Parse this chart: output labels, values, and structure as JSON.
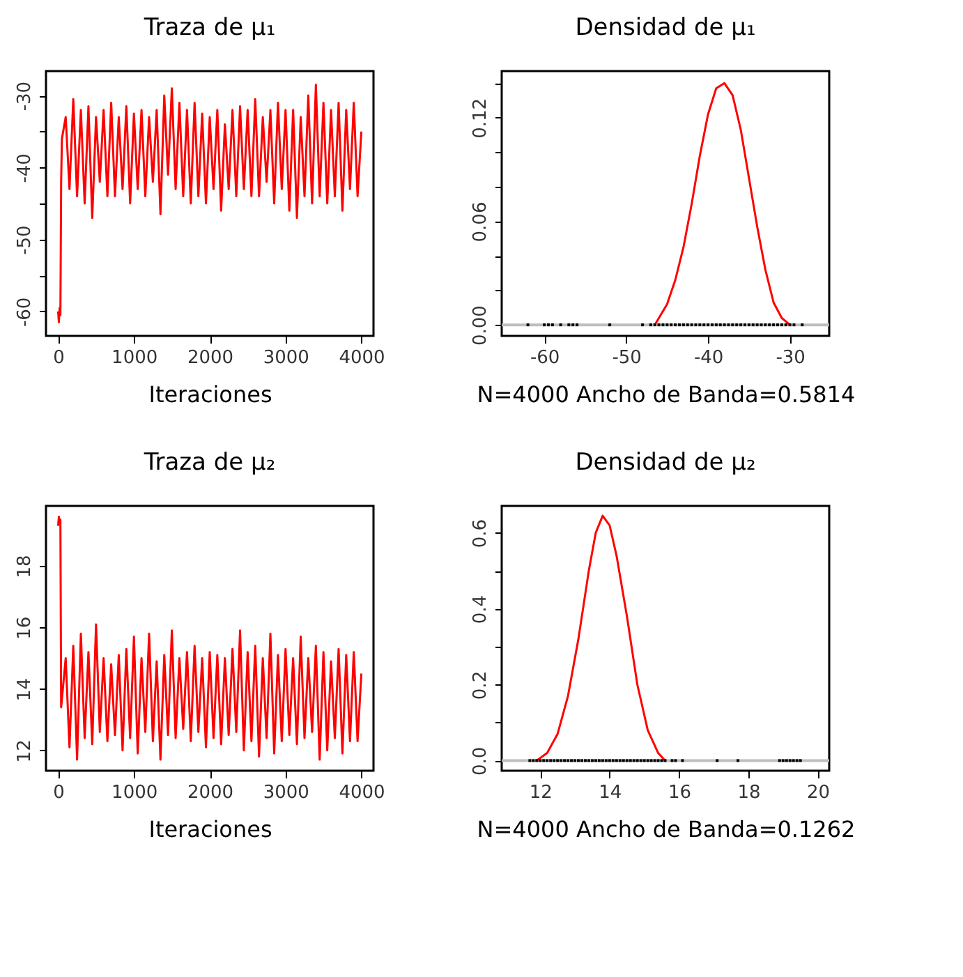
{
  "chart_data": [
    {
      "type": "line",
      "title": "Traza de μ₁",
      "xlabel": "Iteraciones",
      "xlim": [
        -160,
        4160
      ],
      "xticks": [
        0,
        1000,
        2000,
        3000,
        4000
      ],
      "ylim": [
        -63.4,
        -26.6
      ],
      "yticks": [
        -30,
        {
          "value": -35,
          "label": null
        },
        -40,
        {
          "value": -45,
          "label": null
        },
        -50,
        {
          "value": -55,
          "label": null
        },
        -60
      ],
      "grid": false,
      "series": [
        {
          "color": "#ff0000",
          "x": [
            0,
            10,
            20,
            30,
            40,
            50,
            100,
            150,
            200,
            250,
            300,
            350,
            400,
            450,
            500,
            550,
            600,
            650,
            700,
            750,
            800,
            850,
            900,
            950,
            1000,
            1050,
            1100,
            1150,
            1200,
            1250,
            1300,
            1350,
            1400,
            1450,
            1500,
            1550,
            1600,
            1650,
            1700,
            1750,
            1800,
            1850,
            1900,
            1950,
            2000,
            2050,
            2100,
            2150,
            2200,
            2250,
            2300,
            2350,
            2400,
            2450,
            2500,
            2550,
            2600,
            2650,
            2700,
            2750,
            2800,
            2850,
            2900,
            2950,
            3000,
            3050,
            3100,
            3150,
            3200,
            3250,
            3300,
            3350,
            3400,
            3450,
            3500,
            3550,
            3600,
            3650,
            3700,
            3750,
            3800,
            3850,
            3900,
            3950,
            4000
          ],
          "values": [
            -60,
            -61.5,
            -59.5,
            -60.5,
            -42,
            -36,
            -33,
            -43,
            -30.5,
            -44,
            -32,
            -45,
            -31.5,
            -47,
            -33,
            -42,
            -32,
            -44,
            -31,
            -44,
            -33,
            -43,
            -31.5,
            -45,
            -32.5,
            -43,
            -32,
            -44,
            -33,
            -42,
            -32,
            -46.5,
            -30,
            -41,
            -29,
            -43,
            -31,
            -44,
            -32,
            -45,
            -31,
            -44,
            -32.5,
            -45,
            -33,
            -43,
            -32,
            -46,
            -34,
            -43,
            -32,
            -44,
            -31.5,
            -43,
            -32,
            -44,
            -30.5,
            -44,
            -33,
            -42,
            -32,
            -45,
            -31,
            -43,
            -32,
            -46,
            -32,
            -47,
            -33,
            -44,
            -30,
            -45,
            -28.5,
            -44,
            -31,
            -45,
            -32,
            -44,
            -31,
            -46,
            -32,
            -43,
            -31,
            -44,
            -35
          ]
        }
      ]
    },
    {
      "type": "line",
      "title": "Densidad de μ₁",
      "xlabel": "N=4000 Ancho de Banda=0.5814",
      "xlim": [
        -65.2,
        -25.2
      ],
      "xticks": [
        -60,
        -50,
        -40,
        -30
      ],
      "ylim": [
        -0.0064,
        0.147
      ],
      "yticks": [
        {
          "value": 0,
          "label": "0.00"
        },
        {
          "value": 0.02,
          "label": null
        },
        {
          "value": 0.04,
          "label": null
        },
        {
          "value": 0.06,
          "label": "0.06"
        },
        {
          "value": 0.08,
          "label": null
        },
        {
          "value": 0.1,
          "label": null
        },
        {
          "value": 0.12,
          "label": "0.12"
        },
        {
          "value": 0.14,
          "label": null
        }
      ],
      "grid": false,
      "ref_lines": [
        {
          "axis": "y",
          "value": 0,
          "color": "#bebebe"
        }
      ],
      "series": [
        {
          "color": "#ff0000",
          "x": [
            -46.5,
            -45,
            -44,
            -43,
            -42,
            -41,
            -40,
            -39,
            -38,
            -37,
            -36,
            -35,
            -34,
            -33,
            -32,
            -31,
            -30
          ],
          "values": [
            0,
            0.012,
            0.026,
            0.045,
            0.07,
            0.098,
            0.122,
            0.137,
            0.14,
            0.133,
            0.113,
            0.085,
            0.057,
            0.032,
            0.013,
            0.004,
            0
          ]
        },
        {
          "type": "scatter",
          "marker": "square",
          "color": "#000000",
          "x": [
            -62,
            -60,
            -59.5,
            -59,
            -58,
            -57,
            -56.5,
            -56,
            -52,
            -48,
            -47,
            -46.5,
            -46,
            -45.5,
            -45,
            -44.5,
            -44,
            -43.5,
            -43,
            -42.5,
            -42,
            -41.5,
            -41,
            -40.5,
            -40,
            -39.5,
            -39,
            -38.5,
            -38,
            -37.5,
            -37,
            -36.5,
            -36,
            -35.5,
            -35,
            -34.5,
            -34,
            -33.5,
            -33,
            -32.5,
            -32,
            -31.5,
            -31,
            -30.5,
            -30,
            -29.5,
            -28.5
          ],
          "values": [
            0,
            0,
            0,
            0,
            0,
            0,
            0,
            0,
            0,
            0,
            0,
            0,
            0,
            0,
            0,
            0,
            0,
            0,
            0,
            0,
            0,
            0,
            0,
            0,
            0,
            0,
            0,
            0,
            0,
            0,
            0,
            0,
            0,
            0,
            0,
            0,
            0,
            0,
            0,
            0,
            0,
            0,
            0,
            0,
            0,
            0,
            0
          ]
        }
      ]
    },
    {
      "type": "line",
      "title": "Traza de μ₂",
      "xlabel": "Iteraciones",
      "xlim": [
        -160,
        4160
      ],
      "xticks": [
        0,
        1000,
        2000,
        3000,
        4000
      ],
      "ylim": [
        11.34,
        19.95
      ],
      "yticks": [
        12,
        14,
        16,
        18
      ],
      "grid": false,
      "series": [
        {
          "color": "#ff0000",
          "x": [
            0,
            10,
            20,
            30,
            40,
            100,
            150,
            200,
            250,
            300,
            350,
            400,
            450,
            500,
            550,
            600,
            650,
            700,
            750,
            800,
            850,
            900,
            950,
            1000,
            1050,
            1100,
            1150,
            1200,
            1250,
            1300,
            1350,
            1400,
            1450,
            1500,
            1550,
            1600,
            1650,
            1700,
            1750,
            1800,
            1850,
            1900,
            1950,
            2000,
            2050,
            2100,
            2150,
            2200,
            2250,
            2300,
            2350,
            2400,
            2450,
            2500,
            2550,
            2600,
            2650,
            2700,
            2750,
            2800,
            2850,
            2900,
            2950,
            3000,
            3050,
            3100,
            3150,
            3200,
            3250,
            3300,
            3350,
            3400,
            3450,
            3500,
            3550,
            3600,
            3650,
            3700,
            3750,
            3800,
            3850,
            3900,
            3950,
            4000
          ],
          "values": [
            19.3,
            19.6,
            19.4,
            19.5,
            13.4,
            15.0,
            12.1,
            15.4,
            11.7,
            15.8,
            12.4,
            15.2,
            12.2,
            16.1,
            12.6,
            15.0,
            12.3,
            14.8,
            12.5,
            15.1,
            12.0,
            15.3,
            12.4,
            15.7,
            11.9,
            15.0,
            12.6,
            15.8,
            12.3,
            14.9,
            11.7,
            15.1,
            12.5,
            15.9,
            12.4,
            15.0,
            12.7,
            15.2,
            12.3,
            15.4,
            12.6,
            15.0,
            12.1,
            15.2,
            12.4,
            15.1,
            12.2,
            15.0,
            12.5,
            15.3,
            12.6,
            15.9,
            12.0,
            15.2,
            12.3,
            15.4,
            11.8,
            15.0,
            12.4,
            15.8,
            11.9,
            15.1,
            12.3,
            15.3,
            12.5,
            15.0,
            12.2,
            15.7,
            12.4,
            15.0,
            12.6,
            15.4,
            11.7,
            15.2,
            12.0,
            14.9,
            12.4,
            15.3,
            11.9,
            15.1,
            12.3,
            15.2,
            12.3,
            14.5
          ]
        }
      ]
    },
    {
      "type": "line",
      "title": "Densidad de μ₂",
      "xlabel": "N=4000 Ancho de Banda=0.1262",
      "xlim": [
        10.89,
        20.33
      ],
      "xticks": [
        12,
        14,
        16,
        18,
        20
      ],
      "ylim": [
        -0.0268,
        0.671
      ],
      "yticks": [
        {
          "value": 0,
          "label": "0.0"
        },
        {
          "value": 0.1,
          "label": null
        },
        {
          "value": 0.2,
          "label": "0.2"
        },
        {
          "value": 0.3,
          "label": null
        },
        {
          "value": 0.4,
          "label": "0.4"
        },
        {
          "value": 0.5,
          "label": null
        },
        {
          "value": 0.6,
          "label": "0.6"
        }
      ],
      "grid": false,
      "ref_lines": [
        {
          "axis": "y",
          "value": 0,
          "color": "#bebebe"
        }
      ],
      "series": [
        {
          "color": "#ff0000",
          "x": [
            11.9,
            12.2,
            12.5,
            12.8,
            13.1,
            13.4,
            13.6,
            13.8,
            14.0,
            14.2,
            14.5,
            14.8,
            15.1,
            15.4,
            15.6
          ],
          "values": [
            0,
            0.02,
            0.07,
            0.17,
            0.32,
            0.5,
            0.6,
            0.645,
            0.62,
            0.54,
            0.38,
            0.2,
            0.08,
            0.02,
            0
          ]
        },
        {
          "type": "scatter",
          "marker": "square",
          "color": "#000000",
          "x": [
            11.7,
            11.8,
            11.9,
            12.0,
            12.1,
            12.2,
            12.3,
            12.4,
            12.5,
            12.6,
            12.7,
            12.8,
            12.9,
            13.0,
            13.1,
            13.2,
            13.3,
            13.4,
            13.5,
            13.6,
            13.7,
            13.8,
            13.9,
            14.0,
            14.1,
            14.2,
            14.3,
            14.4,
            14.5,
            14.6,
            14.7,
            14.8,
            14.9,
            15.0,
            15.1,
            15.2,
            15.3,
            15.4,
            15.5,
            15.6,
            15.8,
            15.9,
            16.1,
            17.1,
            17.7,
            18.9,
            19.0,
            19.1,
            19.2,
            19.3,
            19.4,
            19.5
          ],
          "values": [
            0,
            0,
            0,
            0,
            0,
            0,
            0,
            0,
            0,
            0,
            0,
            0,
            0,
            0,
            0,
            0,
            0,
            0,
            0,
            0,
            0,
            0,
            0,
            0,
            0,
            0,
            0,
            0,
            0,
            0,
            0,
            0,
            0,
            0,
            0,
            0,
            0,
            0,
            0,
            0,
            0,
            0,
            0,
            0,
            0,
            0,
            0,
            0,
            0,
            0,
            0,
            0
          ]
        }
      ]
    }
  ]
}
